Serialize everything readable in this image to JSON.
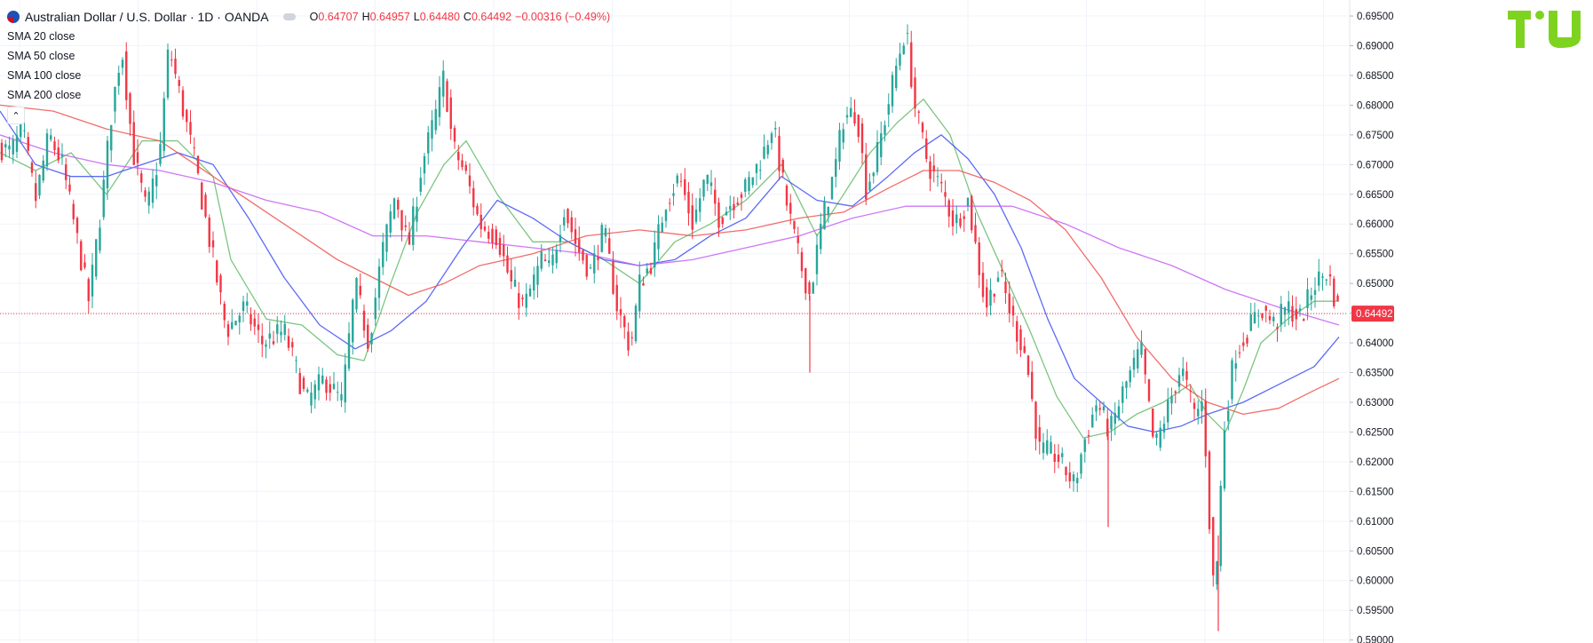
{
  "header": {
    "symbol_title": "Australian Dollar / U.S. Dollar · 1D · OANDA",
    "ohlc": {
      "open_key": "O",
      "open": "0.64707",
      "high_key": "H",
      "high": "0.64957",
      "low_key": "L",
      "low": "0.64480",
      "close_key": "C",
      "close": "0.64492",
      "change": "−0.00316 (−0.49%)"
    }
  },
  "indicators": [
    {
      "label": "SMA 20 close",
      "color": "#66bb6a"
    },
    {
      "label": "SMA 50 close",
      "color": "#3f51f5"
    },
    {
      "label": "SMA 100 close",
      "color": "#ef5350"
    },
    {
      "label": "SMA 200 close",
      "color": "#c75ff5"
    }
  ],
  "logo": {
    "icon": "tradingview-logo"
  },
  "colors": {
    "up": "#26a69a",
    "down": "#f23645",
    "grid": "#f0f3fa",
    "price_line": "#f23645",
    "price_label_bg": "#f23645"
  },
  "chart_data": {
    "type": "candlestick",
    "instrument": "AUDUSD",
    "timeframe": "1D",
    "ylim": [
      0.5895,
      0.6965
    ],
    "y_ticks": [
      0.695,
      0.69,
      0.685,
      0.68,
      0.675,
      0.67,
      0.665,
      0.66,
      0.655,
      0.65,
      0.645,
      0.64,
      0.635,
      0.63,
      0.625,
      0.62,
      0.615,
      0.61,
      0.605,
      0.6,
      0.595,
      0.59
    ],
    "y_tick_labels": [
      "0.69500",
      "0.69000",
      "0.68500",
      "0.68000",
      "0.67500",
      "0.67000",
      "0.66500",
      "0.66000",
      "0.65500",
      "0.65000",
      "0.64500",
      "0.64000",
      "0.63500",
      "0.63000",
      "0.62500",
      "0.62000",
      "0.61500",
      "0.61000",
      "0.60500",
      "0.60000",
      "0.59500",
      "0.59000"
    ],
    "last_price": 0.64492,
    "last_price_label": "0.64492",
    "price_path_anchors": [
      [
        0,
        0.673
      ],
      [
        12,
        0.672
      ],
      [
        25,
        0.676
      ],
      [
        40,
        0.664
      ],
      [
        55,
        0.675
      ],
      [
        70,
        0.67
      ],
      [
        90,
        0.655
      ],
      [
        100,
        0.647
      ],
      [
        115,
        0.664
      ],
      [
        125,
        0.678
      ],
      [
        137,
        0.69
      ],
      [
        150,
        0.672
      ],
      [
        165,
        0.662
      ],
      [
        180,
        0.672
      ],
      [
        190,
        0.69
      ],
      [
        205,
        0.68
      ],
      [
        220,
        0.67
      ],
      [
        235,
        0.658
      ],
      [
        255,
        0.642
      ],
      [
        275,
        0.646
      ],
      [
        295,
        0.64
      ],
      [
        320,
        0.642
      ],
      [
        345,
        0.63
      ],
      [
        365,
        0.634
      ],
      [
        385,
        0.63
      ],
      [
        400,
        0.65
      ],
      [
        415,
        0.64
      ],
      [
        430,
        0.655
      ],
      [
        445,
        0.665
      ],
      [
        460,
        0.656
      ],
      [
        475,
        0.67
      ],
      [
        490,
        0.678
      ],
      [
        500,
        0.685
      ],
      [
        510,
        0.673
      ],
      [
        525,
        0.668
      ],
      [
        540,
        0.66
      ],
      [
        560,
        0.658
      ],
      [
        575,
        0.65
      ],
      [
        590,
        0.646
      ],
      [
        610,
        0.654
      ],
      [
        620,
        0.652
      ],
      [
        635,
        0.663
      ],
      [
        650,
        0.656
      ],
      [
        665,
        0.652
      ],
      [
        680,
        0.659
      ],
      [
        695,
        0.646
      ],
      [
        710,
        0.639
      ],
      [
        720,
        0.65
      ],
      [
        735,
        0.654
      ],
      [
        750,
        0.664
      ],
      [
        765,
        0.668
      ],
      [
        780,
        0.66
      ],
      [
        795,
        0.668
      ],
      [
        810,
        0.661
      ],
      [
        825,
        0.664
      ],
      [
        840,
        0.666
      ],
      [
        860,
        0.672
      ],
      [
        870,
        0.677
      ],
      [
        885,
        0.664
      ],
      [
        900,
        0.654
      ],
      [
        912,
        0.648
      ],
      [
        925,
        0.66
      ],
      [
        940,
        0.669
      ],
      [
        950,
        0.678
      ],
      [
        965,
        0.679
      ],
      [
        975,
        0.666
      ],
      [
        985,
        0.67
      ],
      [
        1000,
        0.68
      ],
      [
        1010,
        0.687
      ],
      [
        1020,
        0.693
      ],
      [
        1030,
        0.68
      ],
      [
        1045,
        0.67
      ],
      [
        1060,
        0.666
      ],
      [
        1075,
        0.66
      ],
      [
        1090,
        0.664
      ],
      [
        1100,
        0.655
      ],
      [
        1110,
        0.646
      ],
      [
        1125,
        0.652
      ],
      [
        1140,
        0.644
      ],
      [
        1155,
        0.638
      ],
      [
        1170,
        0.622
      ],
      [
        1190,
        0.621
      ],
      [
        1210,
        0.616
      ],
      [
        1220,
        0.623
      ],
      [
        1235,
        0.63
      ],
      [
        1250,
        0.625
      ],
      [
        1265,
        0.632
      ],
      [
        1285,
        0.639
      ],
      [
        1300,
        0.622
      ],
      [
        1315,
        0.629
      ],
      [
        1330,
        0.636
      ],
      [
        1345,
        0.628
      ],
      [
        1355,
        0.63
      ],
      [
        1362,
        0.61
      ],
      [
        1368,
        0.596
      ],
      [
        1378,
        0.625
      ],
      [
        1390,
        0.638
      ],
      [
        1405,
        0.642
      ],
      [
        1420,
        0.646
      ],
      [
        1435,
        0.643
      ],
      [
        1450,
        0.646
      ],
      [
        1465,
        0.644
      ],
      [
        1480,
        0.65
      ],
      [
        1495,
        0.652
      ],
      [
        1508,
        0.6449
      ]
    ],
    "extreme_wicks": [
      {
        "x": 912,
        "low": 0.635
      },
      {
        "x": 1248,
        "low": 0.609
      },
      {
        "x": 1372,
        "low": 0.5915
      }
    ],
    "sma_20": [
      [
        0,
        0.672
      ],
      [
        40,
        0.669
      ],
      [
        80,
        0.672
      ],
      [
        120,
        0.665
      ],
      [
        160,
        0.674
      ],
      [
        200,
        0.674
      ],
      [
        240,
        0.668
      ],
      [
        260,
        0.654
      ],
      [
        300,
        0.644
      ],
      [
        340,
        0.643
      ],
      [
        380,
        0.638
      ],
      [
        410,
        0.637
      ],
      [
        440,
        0.65
      ],
      [
        470,
        0.662
      ],
      [
        500,
        0.67
      ],
      [
        525,
        0.674
      ],
      [
        560,
        0.665
      ],
      [
        600,
        0.657
      ],
      [
        640,
        0.657
      ],
      [
        680,
        0.654
      ],
      [
        720,
        0.65
      ],
      [
        760,
        0.657
      ],
      [
        800,
        0.66
      ],
      [
        840,
        0.664
      ],
      [
        880,
        0.67
      ],
      [
        920,
        0.658
      ],
      [
        950,
        0.665
      ],
      [
        980,
        0.672
      ],
      [
        1010,
        0.677
      ],
      [
        1040,
        0.681
      ],
      [
        1070,
        0.675
      ],
      [
        1100,
        0.662
      ],
      [
        1130,
        0.652
      ],
      [
        1160,
        0.642
      ],
      [
        1190,
        0.631
      ],
      [
        1220,
        0.624
      ],
      [
        1250,
        0.625
      ],
      [
        1280,
        0.628
      ],
      [
        1310,
        0.63
      ],
      [
        1340,
        0.633
      ],
      [
        1360,
        0.628
      ],
      [
        1380,
        0.625
      ],
      [
        1400,
        0.632
      ],
      [
        1420,
        0.64
      ],
      [
        1450,
        0.644
      ],
      [
        1480,
        0.647
      ],
      [
        1508,
        0.647
      ]
    ],
    "sma_50": [
      [
        0,
        0.679
      ],
      [
        40,
        0.67
      ],
      [
        80,
        0.668
      ],
      [
        120,
        0.668
      ],
      [
        160,
        0.67
      ],
      [
        200,
        0.672
      ],
      [
        240,
        0.67
      ],
      [
        280,
        0.661
      ],
      [
        320,
        0.651
      ],
      [
        360,
        0.643
      ],
      [
        400,
        0.639
      ],
      [
        440,
        0.642
      ],
      [
        480,
        0.647
      ],
      [
        520,
        0.656
      ],
      [
        560,
        0.664
      ],
      [
        600,
        0.661
      ],
      [
        640,
        0.657
      ],
      [
        680,
        0.654
      ],
      [
        720,
        0.653
      ],
      [
        760,
        0.654
      ],
      [
        800,
        0.658
      ],
      [
        840,
        0.661
      ],
      [
        880,
        0.668
      ],
      [
        920,
        0.664
      ],
      [
        960,
        0.663
      ],
      [
        1000,
        0.668
      ],
      [
        1030,
        0.672
      ],
      [
        1060,
        0.675
      ],
      [
        1090,
        0.671
      ],
      [
        1120,
        0.665
      ],
      [
        1150,
        0.656
      ],
      [
        1180,
        0.644
      ],
      [
        1210,
        0.634
      ],
      [
        1240,
        0.63
      ],
      [
        1270,
        0.626
      ],
      [
        1300,
        0.625
      ],
      [
        1330,
        0.626
      ],
      [
        1360,
        0.628
      ],
      [
        1400,
        0.63
      ],
      [
        1440,
        0.633
      ],
      [
        1480,
        0.636
      ],
      [
        1508,
        0.641
      ]
    ],
    "sma_100": [
      [
        0,
        0.68
      ],
      [
        60,
        0.679
      ],
      [
        120,
        0.676
      ],
      [
        180,
        0.674
      ],
      [
        220,
        0.67
      ],
      [
        260,
        0.666
      ],
      [
        300,
        0.662
      ],
      [
        340,
        0.658
      ],
      [
        380,
        0.654
      ],
      [
        420,
        0.651
      ],
      [
        460,
        0.648
      ],
      [
        500,
        0.65
      ],
      [
        540,
        0.653
      ],
      [
        600,
        0.655
      ],
      [
        660,
        0.658
      ],
      [
        720,
        0.659
      ],
      [
        780,
        0.658
      ],
      [
        840,
        0.659
      ],
      [
        900,
        0.661
      ],
      [
        950,
        0.662
      ],
      [
        1000,
        0.666
      ],
      [
        1040,
        0.669
      ],
      [
        1080,
        0.669
      ],
      [
        1120,
        0.667
      ],
      [
        1160,
        0.664
      ],
      [
        1200,
        0.659
      ],
      [
        1240,
        0.651
      ],
      [
        1280,
        0.641
      ],
      [
        1320,
        0.634
      ],
      [
        1360,
        0.63
      ],
      [
        1400,
        0.628
      ],
      [
        1440,
        0.629
      ],
      [
        1480,
        0.632
      ],
      [
        1508,
        0.634
      ]
    ],
    "sma_200": [
      [
        0,
        0.675
      ],
      [
        60,
        0.672
      ],
      [
        120,
        0.67
      ],
      [
        180,
        0.669
      ],
      [
        240,
        0.667
      ],
      [
        300,
        0.664
      ],
      [
        360,
        0.662
      ],
      [
        420,
        0.658
      ],
      [
        480,
        0.658
      ],
      [
        540,
        0.657
      ],
      [
        600,
        0.656
      ],
      [
        660,
        0.655
      ],
      [
        720,
        0.653
      ],
      [
        780,
        0.654
      ],
      [
        840,
        0.656
      ],
      [
        900,
        0.658
      ],
      [
        960,
        0.661
      ],
      [
        1020,
        0.663
      ],
      [
        1080,
        0.663
      ],
      [
        1140,
        0.663
      ],
      [
        1200,
        0.66
      ],
      [
        1260,
        0.656
      ],
      [
        1320,
        0.653
      ],
      [
        1380,
        0.649
      ],
      [
        1440,
        0.646
      ],
      [
        1508,
        0.643
      ]
    ]
  }
}
